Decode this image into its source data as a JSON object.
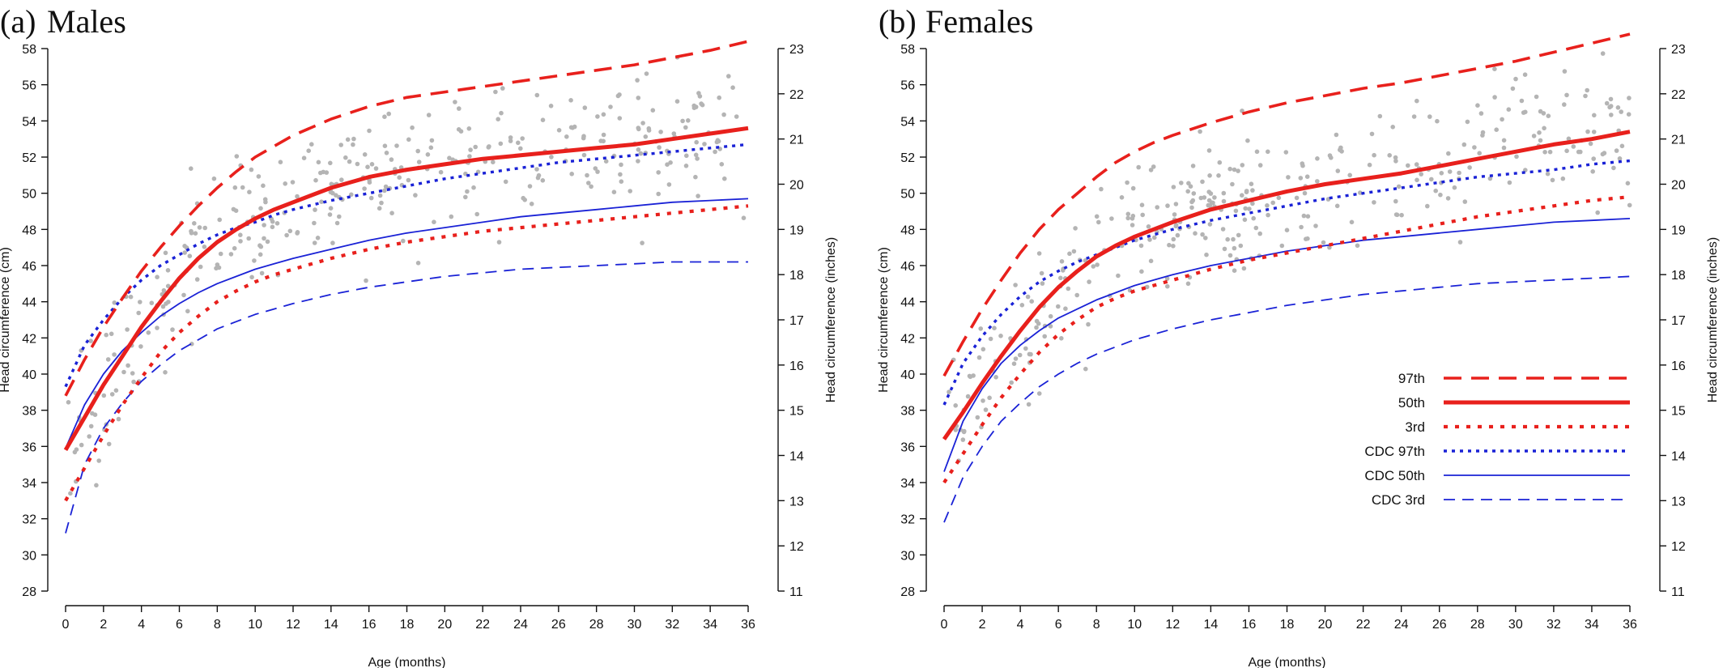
{
  "colors": {
    "red": "#e8201c",
    "blue": "#1a22d6",
    "points": "#b4b4b4"
  },
  "legend": [
    {
      "label": "97th",
      "color": "#e8201c",
      "style": "dashed",
      "width": "thick"
    },
    {
      "label": "50th",
      "color": "#e8201c",
      "style": "solid",
      "width": "thick"
    },
    {
      "label": "3rd",
      "color": "#e8201c",
      "style": "dotted",
      "width": "thick"
    },
    {
      "label": "CDC 97th",
      "color": "#1a22d6",
      "style": "dotted",
      "width": "medium"
    },
    {
      "label": "CDC 50th",
      "color": "#1a22d6",
      "style": "solid",
      "width": "thin"
    },
    {
      "label": "CDC 3rd",
      "color": "#1a22d6",
      "style": "dashed",
      "width": "thin"
    }
  ],
  "chart_data": [
    {
      "panel": "(a)",
      "title": "Males",
      "type": "line",
      "xlabel": "Age (months)",
      "ylabel": "Head circumference (cm)",
      "ylabel_right": "Head circumference (inches)",
      "xlim": [
        0,
        36
      ],
      "ylim": [
        28,
        58
      ],
      "ylim_right": [
        11,
        23
      ],
      "xticks": [
        0,
        2,
        4,
        6,
        8,
        10,
        12,
        14,
        16,
        18,
        20,
        22,
        24,
        26,
        28,
        30,
        32,
        34,
        36
      ],
      "yticks": [
        28,
        30,
        32,
        34,
        36,
        38,
        40,
        42,
        44,
        46,
        48,
        50,
        52,
        54,
        56,
        58
      ],
      "yticks_right": [
        11,
        12,
        13,
        14,
        15,
        16,
        17,
        18,
        19,
        20,
        21,
        22,
        23
      ],
      "grid": false,
      "legend_position": "none",
      "series": [
        {
          "name": "97th",
          "x": [
            0,
            1,
            2,
            3,
            4,
            5,
            6,
            7,
            8,
            9,
            10,
            11,
            12,
            14,
            16,
            18,
            20,
            22,
            24,
            26,
            28,
            30,
            32,
            34,
            36
          ],
          "values": [
            38.8,
            40.8,
            42.6,
            44.2,
            45.7,
            47.0,
            48.2,
            49.3,
            50.3,
            51.2,
            52.0,
            52.6,
            53.2,
            54.1,
            54.8,
            55.3,
            55.6,
            55.9,
            56.2,
            56.5,
            56.8,
            57.1,
            57.5,
            57.9,
            58.4
          ]
        },
        {
          "name": "50th",
          "x": [
            0,
            1,
            2,
            3,
            4,
            5,
            6,
            7,
            8,
            9,
            10,
            11,
            12,
            14,
            16,
            18,
            20,
            22,
            24,
            26,
            28,
            30,
            32,
            34,
            36
          ],
          "values": [
            35.8,
            37.6,
            39.4,
            41.0,
            42.6,
            44.0,
            45.3,
            46.4,
            47.3,
            48.0,
            48.6,
            49.1,
            49.5,
            50.3,
            50.9,
            51.3,
            51.6,
            51.9,
            52.1,
            52.3,
            52.5,
            52.7,
            53.0,
            53.3,
            53.6
          ]
        },
        {
          "name": "3rd",
          "x": [
            0,
            1,
            2,
            3,
            4,
            5,
            6,
            7,
            8,
            9,
            10,
            11,
            12,
            14,
            16,
            18,
            20,
            22,
            24,
            26,
            28,
            30,
            32,
            34,
            36
          ],
          "values": [
            33.0,
            34.8,
            36.6,
            38.3,
            39.8,
            41.2,
            42.3,
            43.2,
            44.0,
            44.6,
            45.1,
            45.5,
            45.8,
            46.4,
            46.9,
            47.3,
            47.6,
            47.9,
            48.1,
            48.3,
            48.5,
            48.7,
            48.9,
            49.1,
            49.3
          ]
        },
        {
          "name": "CDC 97th",
          "x": [
            0,
            1,
            2,
            3,
            4,
            5,
            6,
            7,
            8,
            9,
            10,
            11,
            12,
            14,
            16,
            18,
            20,
            22,
            24,
            26,
            28,
            30,
            32,
            34,
            36
          ],
          "values": [
            39.3,
            41.6,
            43.0,
            44.2,
            45.2,
            46.0,
            46.6,
            47.2,
            47.7,
            48.1,
            48.4,
            48.8,
            49.1,
            49.6,
            50.0,
            50.4,
            50.8,
            51.1,
            51.4,
            51.7,
            51.9,
            52.1,
            52.3,
            52.5,
            52.7
          ]
        },
        {
          "name": "CDC 50th",
          "x": [
            0,
            1,
            2,
            3,
            4,
            5,
            6,
            7,
            8,
            9,
            10,
            11,
            12,
            14,
            16,
            18,
            20,
            22,
            24,
            26,
            28,
            30,
            32,
            34,
            36
          ],
          "values": [
            35.9,
            38.3,
            40.0,
            41.3,
            42.3,
            43.2,
            43.9,
            44.5,
            45.0,
            45.4,
            45.8,
            46.1,
            46.4,
            46.9,
            47.4,
            47.8,
            48.1,
            48.4,
            48.7,
            48.9,
            49.1,
            49.3,
            49.5,
            49.6,
            49.7
          ]
        },
        {
          "name": "CDC 3rd",
          "x": [
            0,
            1,
            2,
            3,
            4,
            5,
            6,
            7,
            8,
            9,
            10,
            11,
            12,
            14,
            16,
            18,
            20,
            22,
            24,
            26,
            28,
            30,
            32,
            34,
            36
          ],
          "values": [
            31.2,
            35.0,
            37.0,
            38.4,
            39.6,
            40.5,
            41.3,
            41.9,
            42.5,
            42.9,
            43.3,
            43.6,
            43.9,
            44.4,
            44.8,
            45.1,
            45.4,
            45.6,
            45.8,
            45.9,
            46.0,
            46.1,
            46.2,
            46.2,
            46.2
          ]
        }
      ]
    },
    {
      "panel": "(b)",
      "title": "Females",
      "type": "line",
      "xlabel": "Age (months)",
      "ylabel": "Head circumference (cm)",
      "ylabel_right": "Head circumference (inches)",
      "xlim": [
        0,
        36
      ],
      "ylim": [
        28,
        58
      ],
      "ylim_right": [
        11,
        23
      ],
      "xticks": [
        0,
        2,
        4,
        6,
        8,
        10,
        12,
        14,
        16,
        18,
        20,
        22,
        24,
        26,
        28,
        30,
        32,
        34,
        36
      ],
      "yticks": [
        28,
        30,
        32,
        34,
        36,
        38,
        40,
        42,
        44,
        46,
        48,
        50,
        52,
        54,
        56,
        58
      ],
      "yticks_right": [
        11,
        12,
        13,
        14,
        15,
        16,
        17,
        18,
        19,
        20,
        21,
        22,
        23
      ],
      "grid": false,
      "legend_position": "bottom-right",
      "series": [
        {
          "name": "97th",
          "x": [
            0,
            1,
            2,
            3,
            4,
            5,
            6,
            7,
            8,
            9,
            10,
            11,
            12,
            14,
            16,
            18,
            20,
            22,
            24,
            26,
            28,
            30,
            32,
            34,
            36
          ],
          "values": [
            39.9,
            41.8,
            43.6,
            45.2,
            46.7,
            48.0,
            49.1,
            50.0,
            50.9,
            51.7,
            52.3,
            52.8,
            53.2,
            53.9,
            54.5,
            55.0,
            55.4,
            55.8,
            56.1,
            56.5,
            56.9,
            57.3,
            57.8,
            58.3,
            58.8
          ]
        },
        {
          "name": "50th",
          "x": [
            0,
            1,
            2,
            3,
            4,
            5,
            6,
            7,
            8,
            9,
            10,
            11,
            12,
            14,
            16,
            18,
            20,
            22,
            24,
            26,
            28,
            30,
            32,
            34,
            36
          ],
          "values": [
            36.4,
            37.9,
            39.5,
            41.0,
            42.4,
            43.7,
            44.8,
            45.7,
            46.5,
            47.1,
            47.6,
            48.0,
            48.4,
            49.1,
            49.6,
            50.1,
            50.5,
            50.8,
            51.1,
            51.5,
            51.9,
            52.3,
            52.7,
            53.0,
            53.4
          ]
        },
        {
          "name": "3rd",
          "x": [
            0,
            1,
            2,
            3,
            4,
            5,
            6,
            7,
            8,
            9,
            10,
            11,
            12,
            14,
            16,
            18,
            20,
            22,
            24,
            26,
            28,
            30,
            32,
            34,
            36
          ],
          "values": [
            34.0,
            35.6,
            37.2,
            38.7,
            40.0,
            41.2,
            42.2,
            43.0,
            43.7,
            44.2,
            44.6,
            44.9,
            45.2,
            45.8,
            46.3,
            46.7,
            47.1,
            47.5,
            47.9,
            48.3,
            48.7,
            49.0,
            49.3,
            49.6,
            49.8
          ]
        },
        {
          "name": "CDC 97th",
          "x": [
            0,
            1,
            2,
            3,
            4,
            5,
            6,
            7,
            8,
            9,
            10,
            11,
            12,
            14,
            16,
            18,
            20,
            22,
            24,
            26,
            28,
            30,
            32,
            34,
            36
          ],
          "values": [
            38.3,
            40.6,
            42.1,
            43.3,
            44.3,
            45.1,
            45.7,
            46.2,
            46.6,
            47.0,
            47.4,
            47.7,
            48.0,
            48.5,
            48.9,
            49.3,
            49.7,
            50.0,
            50.3,
            50.6,
            50.9,
            51.1,
            51.3,
            51.6,
            51.8
          ]
        },
        {
          "name": "CDC 50th",
          "x": [
            0,
            1,
            2,
            3,
            4,
            5,
            6,
            7,
            8,
            9,
            10,
            11,
            12,
            14,
            16,
            18,
            20,
            22,
            24,
            26,
            28,
            30,
            32,
            34,
            36
          ],
          "values": [
            34.6,
            37.4,
            39.2,
            40.6,
            41.6,
            42.4,
            43.1,
            43.6,
            44.1,
            44.5,
            44.9,
            45.2,
            45.5,
            46.0,
            46.4,
            46.8,
            47.1,
            47.4,
            47.6,
            47.8,
            48.0,
            48.2,
            48.4,
            48.5,
            48.6
          ]
        },
        {
          "name": "CDC 3rd",
          "x": [
            0,
            1,
            2,
            3,
            4,
            5,
            6,
            7,
            8,
            9,
            10,
            11,
            12,
            14,
            16,
            18,
            20,
            22,
            24,
            26,
            28,
            30,
            32,
            34,
            36
          ],
          "values": [
            31.8,
            34.3,
            36.0,
            37.4,
            38.4,
            39.3,
            40.0,
            40.6,
            41.1,
            41.5,
            41.9,
            42.2,
            42.5,
            43.0,
            43.4,
            43.8,
            44.1,
            44.4,
            44.6,
            44.8,
            45.0,
            45.1,
            45.2,
            45.3,
            45.4
          ]
        }
      ]
    }
  ]
}
